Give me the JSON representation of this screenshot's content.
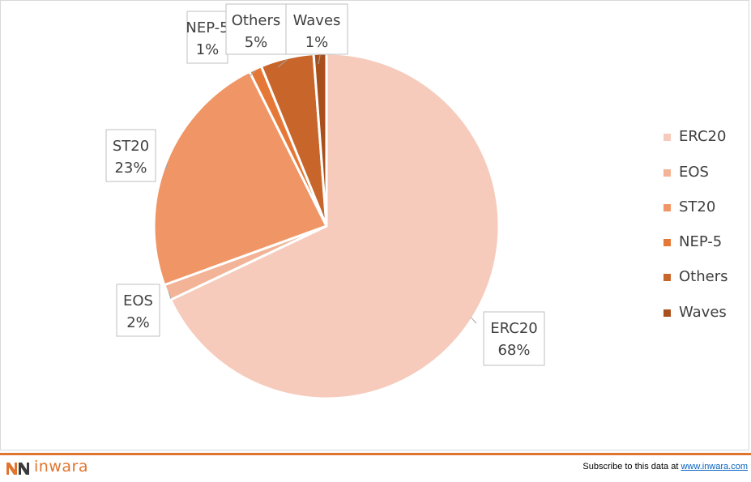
{
  "chart_data": {
    "type": "pie",
    "title": "",
    "slices": [
      {
        "label": "ERC20",
        "percent_label": "68%",
        "value": 68.3,
        "color": "#f6cbbb"
      },
      {
        "label": "EOS",
        "percent_label": "2%",
        "value": 1.5,
        "color": "#f2b396"
      },
      {
        "label": "ST20",
        "percent_label": "23%",
        "value": 23.3,
        "color": "#f09565"
      },
      {
        "label": "NEP-5",
        "percent_label": "1%",
        "value": 1.2,
        "color": "#e57836"
      },
      {
        "label": "Others",
        "percent_label": "5%",
        "value": 5.0,
        "color": "#c8652a"
      },
      {
        "label": "Waves",
        "percent_label": "1%",
        "value": 1.2,
        "color": "#a84f1c"
      }
    ],
    "legend_position": "right",
    "data_labels": "callouts"
  },
  "footer": {
    "brand": "inwara",
    "subscribe_text": "Subscribe to this data at ",
    "subscribe_link": "www.inwara.com",
    "accent_color": "#e0752f"
  }
}
